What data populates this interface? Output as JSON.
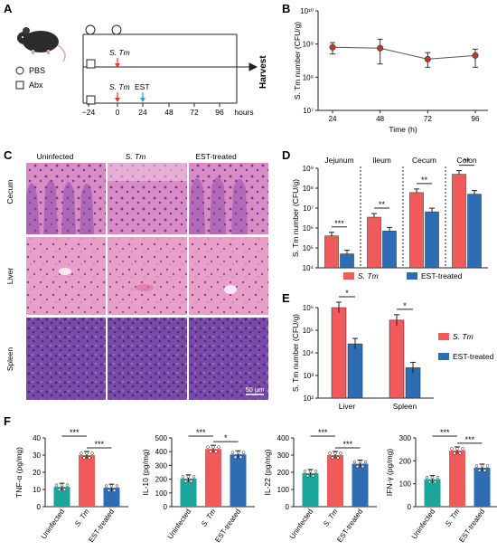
{
  "panels": {
    "A": {
      "label": "A",
      "legend": [
        {
          "shape": "circle",
          "text": "PBS"
        },
        {
          "shape": "square",
          "text": "Abx"
        }
      ],
      "stm_label": "S. Tm",
      "est_label": "EST",
      "harvest_label": "Harvest",
      "timeline_ticks": [
        "−24",
        "0",
        "24",
        "48",
        "72",
        "96"
      ],
      "unit": "hours",
      "colors": {
        "stm_arrow": "#e53935",
        "est_arrow": "#29a0d8"
      }
    },
    "B": {
      "label": "B"
    },
    "C": {
      "label": "C",
      "columns": [
        "Uninfected",
        "S. Tm",
        "EST-treated"
      ],
      "rows": [
        "Cecum",
        "Liver",
        "Spleen"
      ],
      "scale_bar": "50 μm"
    },
    "D": {
      "label": "D"
    },
    "E": {
      "label": "E"
    },
    "F": {
      "label": "F"
    }
  },
  "chart_data": [
    {
      "panel": "B",
      "type": "line",
      "x": [
        24,
        48,
        72,
        96
      ],
      "y": [
        800000000.0,
        750000000.0,
        350000000.0,
        450000000.0
      ],
      "yerr_low": [
        500000000.0,
        250000000.0,
        200000000.0,
        200000000.0
      ],
      "yerr_high": [
        1100000000.0,
        1400000000.0,
        550000000.0,
        700000000.0
      ],
      "xlabel": "Time (h)",
      "ylabel": "S. Tm number (CFU/g)",
      "yscale": "log",
      "ylim": [
        10000000.0,
        10000000000.0
      ],
      "ytick_labels": [
        "10⁷",
        "10⁸",
        "10⁹",
        "10¹⁰"
      ],
      "xtick_labels": [
        "24",
        "48",
        "72",
        "96"
      ],
      "colors": {
        "point": "#c0392b",
        "line": "#555555"
      }
    },
    {
      "panel": "D",
      "type": "bar",
      "yscale": "log",
      "ylim": [
        10000.0,
        1000000000.0
      ],
      "ylabel": "S. Tm number (CFU/g)",
      "ytick_labels": [
        "10⁴",
        "10⁵",
        "10⁶",
        "10⁷",
        "10⁸",
        "10⁹"
      ],
      "categories": [
        "Jejunum",
        "Ileum",
        "Cecum",
        "Colon"
      ],
      "series": [
        {
          "name": "S. Tm",
          "values": [
            400000.0,
            3500000.0,
            60000000.0,
            500000000.0
          ],
          "color": "#f05a5a"
        },
        {
          "name": "EST-treated",
          "values": [
            50000.0,
            700000.0,
            6500000.0,
            50000000.0
          ],
          "color": "#2e6db4"
        }
      ],
      "significance": [
        "***",
        "**",
        "**",
        "**"
      ]
    },
    {
      "panel": "E",
      "type": "bar",
      "yscale": "log",
      "ylim": [
        100.0,
        1000000.0
      ],
      "ylabel": "S. Tm number (CFU/g)",
      "ytick_labels": [
        "10²",
        "10³",
        "10⁴",
        "10⁵",
        "10⁶"
      ],
      "categories": [
        "Liver",
        "Spleen"
      ],
      "series": [
        {
          "name": "S. Tm",
          "values": [
            1000000.0,
            280000.0
          ],
          "color": "#f05a5a"
        },
        {
          "name": "EST-treated",
          "values": [
            25000.0,
            2200.0
          ],
          "color": "#2e6db4"
        }
      ],
      "significance": [
        "*",
        "*"
      ]
    },
    {
      "panel": "F",
      "type": "bar",
      "ylabel": "TNF-α (pg/mg)",
      "ylim": [
        0,
        40
      ],
      "ytick_labels": [
        "0",
        "10",
        "20",
        "30",
        "40"
      ],
      "categories": [
        "Uninfected",
        "S. Tm",
        "EST-treated"
      ],
      "values": [
        11.5,
        30,
        11
      ],
      "colors": [
        "#1aa69a",
        "#f05a5a",
        "#2e6db4"
      ],
      "significance": [
        "***",
        "***"
      ]
    },
    {
      "panel": "F",
      "type": "bar",
      "ylabel": "IL-10 (pg/mg)",
      "ylim": [
        0,
        500
      ],
      "ytick_labels": [
        "0",
        "100",
        "200",
        "300",
        "400",
        "500"
      ],
      "categories": [
        "Uninfected",
        "S. Tm",
        "EST-treated"
      ],
      "values": [
        205,
        420,
        380
      ],
      "colors": [
        "#1aa69a",
        "#f05a5a",
        "#2e6db4"
      ],
      "significance": [
        "***",
        "*"
      ]
    },
    {
      "panel": "F",
      "type": "bar",
      "ylabel": "IL-22 (pg/mg)",
      "ylim": [
        0,
        400
      ],
      "ytick_labels": [
        "0",
        "100",
        "200",
        "300",
        "400"
      ],
      "categories": [
        "Uninfected",
        "S. Tm",
        "EST-treated"
      ],
      "values": [
        195,
        300,
        250
      ],
      "colors": [
        "#1aa69a",
        "#f05a5a",
        "#2e6db4"
      ],
      "significance": [
        "***",
        "***"
      ]
    },
    {
      "panel": "F",
      "type": "bar",
      "ylabel": "IFN-γ (pg/mg)",
      "ylim": [
        0,
        300
      ],
      "ytick_labels": [
        "0",
        "100",
        "200",
        "300"
      ],
      "categories": [
        "Uninfected",
        "S. Tm",
        "EST-treated"
      ],
      "values": [
        120,
        245,
        170
      ],
      "colors": [
        "#1aa69a",
        "#f05a5a",
        "#2e6db4"
      ],
      "significance": [
        "***",
        "***"
      ]
    }
  ]
}
